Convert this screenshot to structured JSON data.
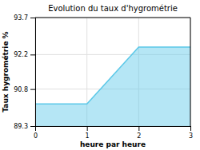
{
  "chart_data": {
    "type": "area",
    "title": "Evolution du taux d'hygrométrie",
    "xlabel": "heure par heure",
    "ylabel": "Taux hygrométrie %",
    "x": [
      0,
      1,
      2,
      3
    ],
    "values": [
      90.2,
      90.2,
      92.5,
      92.5
    ],
    "xlim": [
      0,
      3
    ],
    "ylim": [
      89.3,
      93.7
    ],
    "xticks": [
      0,
      1,
      2,
      3
    ],
    "yticks": [
      89.3,
      90.8,
      92.2,
      93.7
    ],
    "grid": true,
    "color": "#5bc8e8"
  }
}
